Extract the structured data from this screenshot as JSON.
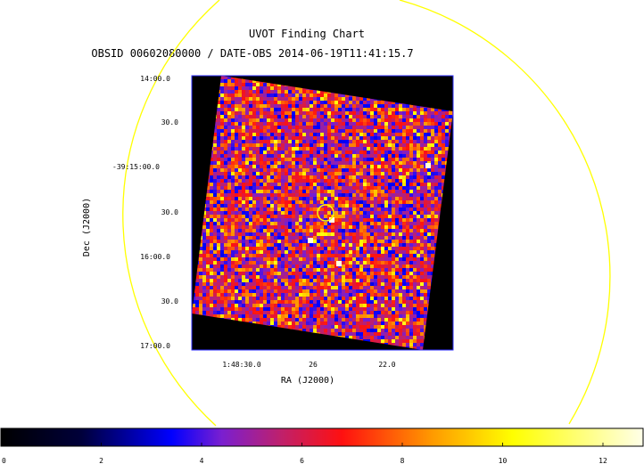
{
  "chart_data": {
    "type": "heatmap",
    "title": "UVOT Finding Chart",
    "subtitle": "OBSID 00602080000 / DATE-OBS 2014-06-19T11:41:15.7",
    "xlabel": "RA (J2000)",
    "ylabel": "Dec (J2000)",
    "x_ticks": [
      "1:48:30.0",
      "26",
      "22.0"
    ],
    "y_ticks": [
      "14:00.0",
      "30.0",
      "-39:15:00.0",
      "30.0",
      "16:00.0",
      "30.0",
      "17:00.0"
    ],
    "colorbar": {
      "ticks": [
        "0",
        "2",
        "4",
        "6",
        "8",
        "10",
        "12"
      ],
      "min": 0,
      "max": 12.8,
      "stops": [
        {
          "v": 0,
          "color": "#000000"
        },
        {
          "v": 1.6,
          "color": "#00003a"
        },
        {
          "v": 3.4,
          "color": "#0000ff"
        },
        {
          "v": 4.4,
          "color": "#7a1fd0"
        },
        {
          "v": 5.6,
          "color": "#c0206a"
        },
        {
          "v": 6.8,
          "color": "#ff1010"
        },
        {
          "v": 8.6,
          "color": "#ff9a00"
        },
        {
          "v": 10.2,
          "color": "#ffff00"
        },
        {
          "v": 12.8,
          "color": "#ffffe8"
        }
      ]
    },
    "colors": {
      "frame": "#3030ff",
      "overlay": "#ffff00",
      "background": "#000000"
    }
  }
}
